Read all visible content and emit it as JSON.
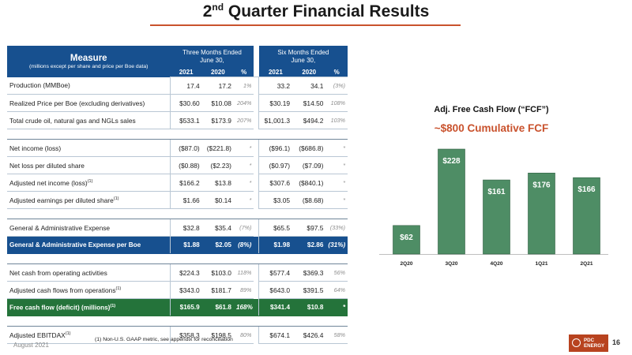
{
  "header": {
    "title_main": "2",
    "title_sup": "nd",
    "title_rest": " Quarter Financial Results"
  },
  "table": {
    "measure_title": "Measure",
    "measure_sub": "(millions except per share and price per Boe data)",
    "period1_line1": "Three Months Ended",
    "period1_line2": "June 30,",
    "period2_line1": "Six Months Ended",
    "period2_line2": "June 30,",
    "col_headers": [
      "2021",
      "2020",
      "%",
      "2021",
      "2020",
      "%"
    ],
    "rows": [
      {
        "label": "Production (MMBoe)",
        "sup": "",
        "v": [
          "17.4",
          "17.2",
          "1%",
          "33.2",
          "34.1",
          "(3%)"
        ]
      },
      {
        "label": "Realized Price per Boe (excluding derivatives)",
        "sup": "",
        "v": [
          "$30.60",
          "$10.08",
          "204%",
          "$30.19",
          "$14.50",
          "108%"
        ]
      },
      {
        "label": "Total crude oil, natural gas and NGLs sales",
        "sup": "",
        "v": [
          "$533.1",
          "$173.9",
          "207%",
          "$1,001.3",
          "$494.2",
          "103%"
        ]
      },
      {
        "label": "Net income (loss)",
        "sup": "",
        "v": [
          "($87.0)",
          "($221.8)",
          "*",
          "($96.1)",
          "($686.8)",
          "*"
        ]
      },
      {
        "label": "Net loss per diluted share",
        "sup": "",
        "v": [
          "($0.88)",
          "($2.23)",
          "*",
          "($0.97)",
          "($7.09)",
          "*"
        ]
      },
      {
        "label": "Adjusted net income (loss)",
        "sup": "(1)",
        "v": [
          "$166.2",
          "$13.8",
          "*",
          "$307.6",
          "($840.1)",
          "*"
        ]
      },
      {
        "label": "Adjusted earnings per diluted share",
        "sup": "(1)",
        "v": [
          "$1.66",
          "$0.14",
          "*",
          "$3.05",
          "($8.68)",
          "*"
        ]
      },
      {
        "label": "General & Administrative Expense",
        "sup": "",
        "v": [
          "$32.8",
          "$35.4",
          "(7%)",
          "$65.5",
          "$97.5",
          "(33%)"
        ]
      },
      {
        "label": "General & Administrative Expense per Boe",
        "sup": "",
        "v": [
          "$1.88",
          "$2.05",
          "(8%)",
          "$1.98",
          "$2.86",
          "(31%)"
        ]
      },
      {
        "label": "Net cash from operating activities",
        "sup": "",
        "v": [
          "$224.3",
          "$103.0",
          "118%",
          "$577.4",
          "$369.3",
          "56%"
        ]
      },
      {
        "label": "Adjusted cash flows from operations",
        "sup": "(1)",
        "v": [
          "$343.0",
          "$181.7",
          "89%",
          "$643.0",
          "$391.5",
          "64%"
        ]
      },
      {
        "label": "Free cash flow (deficit) (millions)",
        "sup": "(1)",
        "v": [
          "$165.9",
          "$61.8",
          "168%",
          "$341.4",
          "$10.8",
          "*"
        ]
      },
      {
        "label": "Adjusted EBITDAX",
        "sup": "(1)",
        "v": [
          "$358.3",
          "$198.5",
          "80%",
          "$674.1",
          "$426.4",
          "58%"
        ]
      }
    ]
  },
  "chart": {
    "title": "Adj. Free Cash Flow (“FCF”)",
    "subtitle": "~$800 Cumulative FCF"
  },
  "chart_data": {
    "type": "bar",
    "title": "Adj. Free Cash Flow (“FCF”)",
    "subtitle": "~$800 Cumulative FCF",
    "categories": [
      "2Q20",
      "3Q20",
      "4Q20",
      "1Q21",
      "2Q21"
    ],
    "values": [
      62,
      228,
      161,
      176,
      166
    ],
    "data_labels": [
      "$62",
      "$228",
      "$161",
      "$176",
      "$166"
    ],
    "bar_color": "#4e8d65",
    "ylim": [
      0,
      240
    ],
    "grid": false,
    "legend": "none"
  },
  "footer": {
    "footnote": "(1) Non-U.S. GAAP metric, see appendix for reconciliation",
    "date": "August 2021",
    "logo_line1": "PDC",
    "logo_line2": "ENERGY",
    "page": "16"
  },
  "colors": {
    "navy": "#17508f",
    "green": "#24733a",
    "accent": "#c9522d"
  }
}
